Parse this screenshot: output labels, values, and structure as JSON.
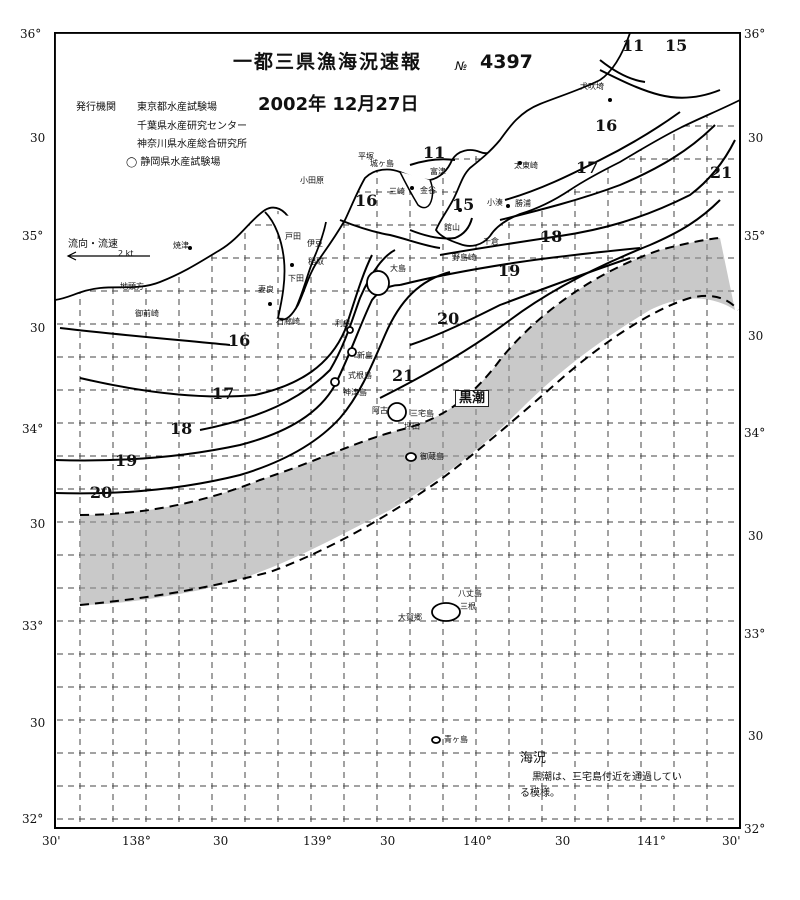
{
  "header": {
    "title": "一都三県漁海況速報",
    "issue_prefix": "№",
    "issue_number": "4397",
    "issuer_label": "発行機関",
    "issuers": [
      "東京都水産試験場",
      "千葉県水産研究センター",
      "神奈川県水産総合研究所",
      "静岡県水産試験場"
    ],
    "date": "2002年 12月27日"
  },
  "axes": {
    "lat_ticks_left": [
      "36°",
      "30",
      "35°",
      "30",
      "34°",
      "30",
      "33°",
      "30",
      "32°"
    ],
    "lat_ticks_right": [
      "36°",
      "30",
      "35°",
      "30",
      "34°",
      "30",
      "33°",
      "30",
      "32°"
    ],
    "lon_ticks_bottom": [
      "30'",
      "138°",
      "30",
      "139°",
      "30",
      "140°",
      "30",
      "141°",
      "30'"
    ]
  },
  "legend": {
    "current_label": "流向・流速",
    "speed_label": "2 kt"
  },
  "isotherms": {
    "west": [
      "16",
      "17",
      "18",
      "19",
      "20"
    ],
    "bay": [
      "11",
      "15",
      "16"
    ],
    "east": [
      "11",
      "15",
      "16",
      "17",
      "18",
      "19",
      "20",
      "21",
      "21"
    ]
  },
  "kuroshio_label": "黒潮",
  "places": {
    "yaizu": "焼津",
    "jiguchigata": "地頭方",
    "omaezaki": "御前崎",
    "heta": "戸田",
    "ita": "伊豆",
    "inatori": "稲取",
    "shimoda": "下田",
    "mera": "妻良",
    "irozaki": "石廊崎",
    "odawara": "小田原",
    "hiratsuka": "平塚",
    "jogashima": "城ヶ島",
    "miura": "三崎",
    "futtsu": "富津",
    "kanaya": "金谷",
    "tateyama": "館山",
    "chikura": "千倉",
    "nojima": "野島崎",
    "katsuura": "勝浦",
    "kominato": "小湊",
    "taito": "太東崎",
    "inubo": "犬吠埼",
    "oshima": "大島",
    "toshima": "利島",
    "niijima": "新島",
    "shikine": "式根島",
    "kozu": "神津島",
    "miyake": "三宅島",
    "ako": "阿古",
    "tsubota": "坪田",
    "mikura": "御蔵島",
    "hachijo": "八丈島",
    "oga": "大賀郷",
    "mitsune": "三根",
    "aogashima": "青ヶ島"
  },
  "note": {
    "heading": "海況",
    "line1": "黒潮は、三宅島付近を通過してい",
    "line2": "る模様。"
  }
}
